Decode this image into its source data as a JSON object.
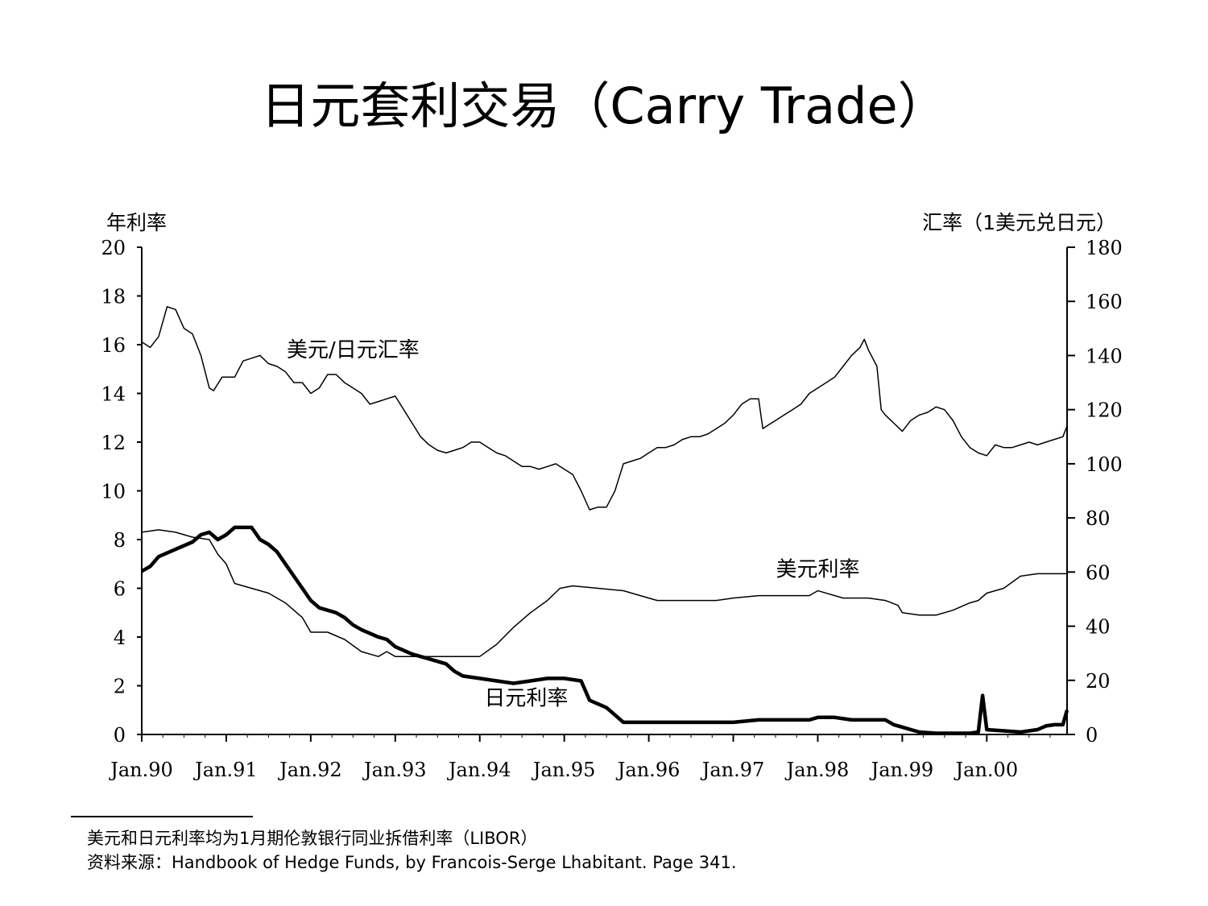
{
  "slide": {
    "title": "日元套利交易（Carry Trade）"
  },
  "footnotes": {
    "note": "美元和日元利率均为1月期伦敦银行同业拆借利率（LIBOR）",
    "source": "资料来源：Handbook of Hedge Funds, by Francois-Serge Lhabitant. Page 341."
  },
  "chart_data": {
    "type": "line",
    "left_axis": {
      "label": "年利率",
      "range": [
        0,
        20
      ],
      "ticks": [
        "0",
        "2",
        "4",
        "6",
        "8",
        "10",
        "12",
        "14",
        "16",
        "18",
        "20"
      ]
    },
    "right_axis": {
      "label": "汇率（1美元兑日元）",
      "range": [
        0,
        180
      ],
      "ticks": [
        "0",
        "20",
        "40",
        "60",
        "80",
        "100",
        "120",
        "140",
        "160",
        "180"
      ]
    },
    "x_axis": {
      "range": [
        1990.0,
        2000.95
      ],
      "tick_labels": [
        "Jan.90",
        "Jan.91",
        "Jan.92",
        "Jan.93",
        "Jan.94",
        "Jan.95",
        "Jan.96",
        "Jan.97",
        "Jan.98",
        "Jan.99",
        "Jan.00"
      ]
    },
    "grid": false,
    "series": [
      {
        "name": "美元/日元汇率",
        "axis": "right",
        "color": "#000000",
        "stroke": "thin",
        "points": [
          [
            1990.0,
            145
          ],
          [
            1990.1,
            143
          ],
          [
            1990.2,
            147
          ],
          [
            1990.3,
            158
          ],
          [
            1990.4,
            157
          ],
          [
            1990.5,
            150
          ],
          [
            1990.6,
            148
          ],
          [
            1990.7,
            140
          ],
          [
            1990.8,
            128
          ],
          [
            1990.85,
            127
          ],
          [
            1990.95,
            132
          ],
          [
            1991.1,
            132
          ],
          [
            1991.2,
            138
          ],
          [
            1991.3,
            139
          ],
          [
            1991.4,
            140
          ],
          [
            1991.5,
            137
          ],
          [
            1991.6,
            136
          ],
          [
            1991.7,
            134
          ],
          [
            1991.8,
            130
          ],
          [
            1991.9,
            130
          ],
          [
            1992.0,
            126
          ],
          [
            1992.1,
            128
          ],
          [
            1992.2,
            133
          ],
          [
            1992.3,
            133
          ],
          [
            1992.4,
            130
          ],
          [
            1992.5,
            128
          ],
          [
            1992.6,
            126
          ],
          [
            1992.7,
            122
          ],
          [
            1992.8,
            123
          ],
          [
            1992.9,
            124
          ],
          [
            1993.0,
            125
          ],
          [
            1993.1,
            120
          ],
          [
            1993.2,
            115
          ],
          [
            1993.3,
            110
          ],
          [
            1993.4,
            107
          ],
          [
            1993.5,
            105
          ],
          [
            1993.6,
            104
          ],
          [
            1993.7,
            105
          ],
          [
            1993.8,
            106
          ],
          [
            1993.9,
            108
          ],
          [
            1994.0,
            108
          ],
          [
            1994.1,
            106
          ],
          [
            1994.2,
            104
          ],
          [
            1994.3,
            103
          ],
          [
            1994.4,
            101
          ],
          [
            1994.5,
            99
          ],
          [
            1994.6,
            99
          ],
          [
            1994.7,
            98
          ],
          [
            1994.8,
            99
          ],
          [
            1994.9,
            100
          ],
          [
            1995.0,
            98
          ],
          [
            1995.1,
            96
          ],
          [
            1995.2,
            90
          ],
          [
            1995.3,
            83
          ],
          [
            1995.4,
            84
          ],
          [
            1995.5,
            84
          ],
          [
            1995.6,
            90
          ],
          [
            1995.7,
            100
          ],
          [
            1995.8,
            101
          ],
          [
            1995.9,
            102
          ],
          [
            1996.0,
            104
          ],
          [
            1996.1,
            106
          ],
          [
            1996.2,
            106
          ],
          [
            1996.3,
            107
          ],
          [
            1996.4,
            109
          ],
          [
            1996.5,
            110
          ],
          [
            1996.6,
            110
          ],
          [
            1996.7,
            111
          ],
          [
            1996.8,
            113
          ],
          [
            1996.9,
            115
          ],
          [
            1997.0,
            118
          ],
          [
            1997.1,
            122
          ],
          [
            1997.2,
            124
          ],
          [
            1997.3,
            124
          ],
          [
            1997.35,
            113
          ],
          [
            1997.4,
            114
          ],
          [
            1997.5,
            116
          ],
          [
            1997.6,
            118
          ],
          [
            1997.7,
            120
          ],
          [
            1997.8,
            122
          ],
          [
            1997.9,
            126
          ],
          [
            1998.0,
            128
          ],
          [
            1998.1,
            130
          ],
          [
            1998.2,
            132
          ],
          [
            1998.3,
            136
          ],
          [
            1998.4,
            140
          ],
          [
            1998.5,
            143
          ],
          [
            1998.55,
            146
          ],
          [
            1998.6,
            142
          ],
          [
            1998.7,
            136
          ],
          [
            1998.75,
            120
          ],
          [
            1998.8,
            118
          ],
          [
            1998.9,
            115
          ],
          [
            1999.0,
            112
          ],
          [
            1999.1,
            116
          ],
          [
            1999.2,
            118
          ],
          [
            1999.3,
            119
          ],
          [
            1999.4,
            121
          ],
          [
            1999.5,
            120
          ],
          [
            1999.6,
            116
          ],
          [
            1999.7,
            110
          ],
          [
            1999.8,
            106
          ],
          [
            1999.9,
            104
          ],
          [
            2000.0,
            103
          ],
          [
            2000.1,
            107
          ],
          [
            2000.2,
            106
          ],
          [
            2000.3,
            106
          ],
          [
            2000.4,
            107
          ],
          [
            2000.5,
            108
          ],
          [
            2000.6,
            107
          ],
          [
            2000.7,
            108
          ],
          [
            2000.8,
            109
          ],
          [
            2000.9,
            110
          ],
          [
            2000.95,
            114
          ]
        ]
      },
      {
        "name": "美元利率",
        "axis": "left",
        "color": "#000000",
        "stroke": "thin",
        "points": [
          [
            1990.0,
            8.3
          ],
          [
            1990.2,
            8.4
          ],
          [
            1990.4,
            8.3
          ],
          [
            1990.6,
            8.1
          ],
          [
            1990.8,
            8.0
          ],
          [
            1990.9,
            7.4
          ],
          [
            1991.0,
            7.0
          ],
          [
            1991.1,
            6.2
          ],
          [
            1991.3,
            6.0
          ],
          [
            1991.5,
            5.8
          ],
          [
            1991.7,
            5.4
          ],
          [
            1991.9,
            4.8
          ],
          [
            1992.0,
            4.2
          ],
          [
            1992.2,
            4.2
          ],
          [
            1992.4,
            3.9
          ],
          [
            1992.6,
            3.4
          ],
          [
            1992.8,
            3.2
          ],
          [
            1992.9,
            3.4
          ],
          [
            1993.0,
            3.2
          ],
          [
            1993.5,
            3.2
          ],
          [
            1994.0,
            3.2
          ],
          [
            1994.2,
            3.7
          ],
          [
            1994.4,
            4.4
          ],
          [
            1994.6,
            5.0
          ],
          [
            1994.8,
            5.5
          ],
          [
            1994.95,
            6.0
          ],
          [
            1995.1,
            6.1
          ],
          [
            1995.4,
            6.0
          ],
          [
            1995.7,
            5.9
          ],
          [
            1995.9,
            5.7
          ],
          [
            1996.1,
            5.5
          ],
          [
            1996.4,
            5.5
          ],
          [
            1996.8,
            5.5
          ],
          [
            1997.0,
            5.6
          ],
          [
            1997.3,
            5.7
          ],
          [
            1997.6,
            5.7
          ],
          [
            1997.9,
            5.7
          ],
          [
            1998.0,
            5.9
          ],
          [
            1998.3,
            5.6
          ],
          [
            1998.6,
            5.6
          ],
          [
            1998.8,
            5.5
          ],
          [
            1998.95,
            5.3
          ],
          [
            1999.0,
            5.0
          ],
          [
            1999.2,
            4.9
          ],
          [
            1999.4,
            4.9
          ],
          [
            1999.6,
            5.1
          ],
          [
            1999.8,
            5.4
          ],
          [
            1999.9,
            5.5
          ],
          [
            2000.0,
            5.8
          ],
          [
            2000.2,
            6.0
          ],
          [
            2000.4,
            6.5
          ],
          [
            2000.6,
            6.6
          ],
          [
            2000.8,
            6.6
          ],
          [
            2000.95,
            6.6
          ]
        ]
      },
      {
        "name": "日元利率",
        "axis": "left",
        "color": "#000000",
        "stroke": "thick",
        "points": [
          [
            1990.0,
            6.7
          ],
          [
            1990.1,
            6.9
          ],
          [
            1990.2,
            7.3
          ],
          [
            1990.4,
            7.6
          ],
          [
            1990.6,
            7.9
          ],
          [
            1990.7,
            8.2
          ],
          [
            1990.8,
            8.3
          ],
          [
            1990.9,
            8.0
          ],
          [
            1991.0,
            8.2
          ],
          [
            1991.1,
            8.5
          ],
          [
            1991.3,
            8.5
          ],
          [
            1991.4,
            8.0
          ],
          [
            1991.5,
            7.8
          ],
          [
            1991.6,
            7.5
          ],
          [
            1991.7,
            7.0
          ],
          [
            1991.8,
            6.5
          ],
          [
            1991.9,
            6.0
          ],
          [
            1992.0,
            5.5
          ],
          [
            1992.1,
            5.2
          ],
          [
            1992.3,
            5.0
          ],
          [
            1992.4,
            4.8
          ],
          [
            1992.5,
            4.5
          ],
          [
            1992.6,
            4.3
          ],
          [
            1992.8,
            4.0
          ],
          [
            1992.9,
            3.9
          ],
          [
            1993.0,
            3.6
          ],
          [
            1993.2,
            3.3
          ],
          [
            1993.4,
            3.1
          ],
          [
            1993.6,
            2.9
          ],
          [
            1993.7,
            2.6
          ],
          [
            1993.8,
            2.4
          ],
          [
            1994.0,
            2.3
          ],
          [
            1994.2,
            2.2
          ],
          [
            1994.4,
            2.1
          ],
          [
            1994.6,
            2.2
          ],
          [
            1994.8,
            2.3
          ],
          [
            1995.0,
            2.3
          ],
          [
            1995.2,
            2.2
          ],
          [
            1995.3,
            1.4
          ],
          [
            1995.5,
            1.1
          ],
          [
            1995.6,
            0.8
          ],
          [
            1995.7,
            0.5
          ],
          [
            1995.8,
            0.5
          ],
          [
            1996.0,
            0.5
          ],
          [
            1996.2,
            0.5
          ],
          [
            1996.4,
            0.5
          ],
          [
            1996.6,
            0.5
          ],
          [
            1996.8,
            0.5
          ],
          [
            1997.0,
            0.5
          ],
          [
            1997.3,
            0.6
          ],
          [
            1997.6,
            0.6
          ],
          [
            1997.9,
            0.6
          ],
          [
            1998.0,
            0.7
          ],
          [
            1998.2,
            0.7
          ],
          [
            1998.4,
            0.6
          ],
          [
            1998.6,
            0.6
          ],
          [
            1998.8,
            0.6
          ],
          [
            1998.9,
            0.4
          ],
          [
            1999.0,
            0.3
          ],
          [
            1999.2,
            0.1
          ],
          [
            1999.4,
            0.05
          ],
          [
            1999.6,
            0.05
          ],
          [
            1999.8,
            0.05
          ],
          [
            1999.9,
            0.1
          ],
          [
            1999.95,
            1.6
          ],
          [
            2000.0,
            0.2
          ],
          [
            2000.2,
            0.15
          ],
          [
            2000.4,
            0.1
          ],
          [
            2000.6,
            0.2
          ],
          [
            2000.7,
            0.35
          ],
          [
            2000.8,
            0.4
          ],
          [
            2000.9,
            0.4
          ],
          [
            2000.95,
            1.0
          ]
        ]
      }
    ],
    "annotations": [
      {
        "text": "美元/日元汇率",
        "x": 1992.5,
        "axis": "left",
        "y": 15.5
      },
      {
        "text": "美元利率",
        "x": 1998.0,
        "axis": "left",
        "y": 6.5
      },
      {
        "text": "日元利率",
        "x": 1994.55,
        "axis": "left",
        "y": 1.2
      }
    ]
  }
}
